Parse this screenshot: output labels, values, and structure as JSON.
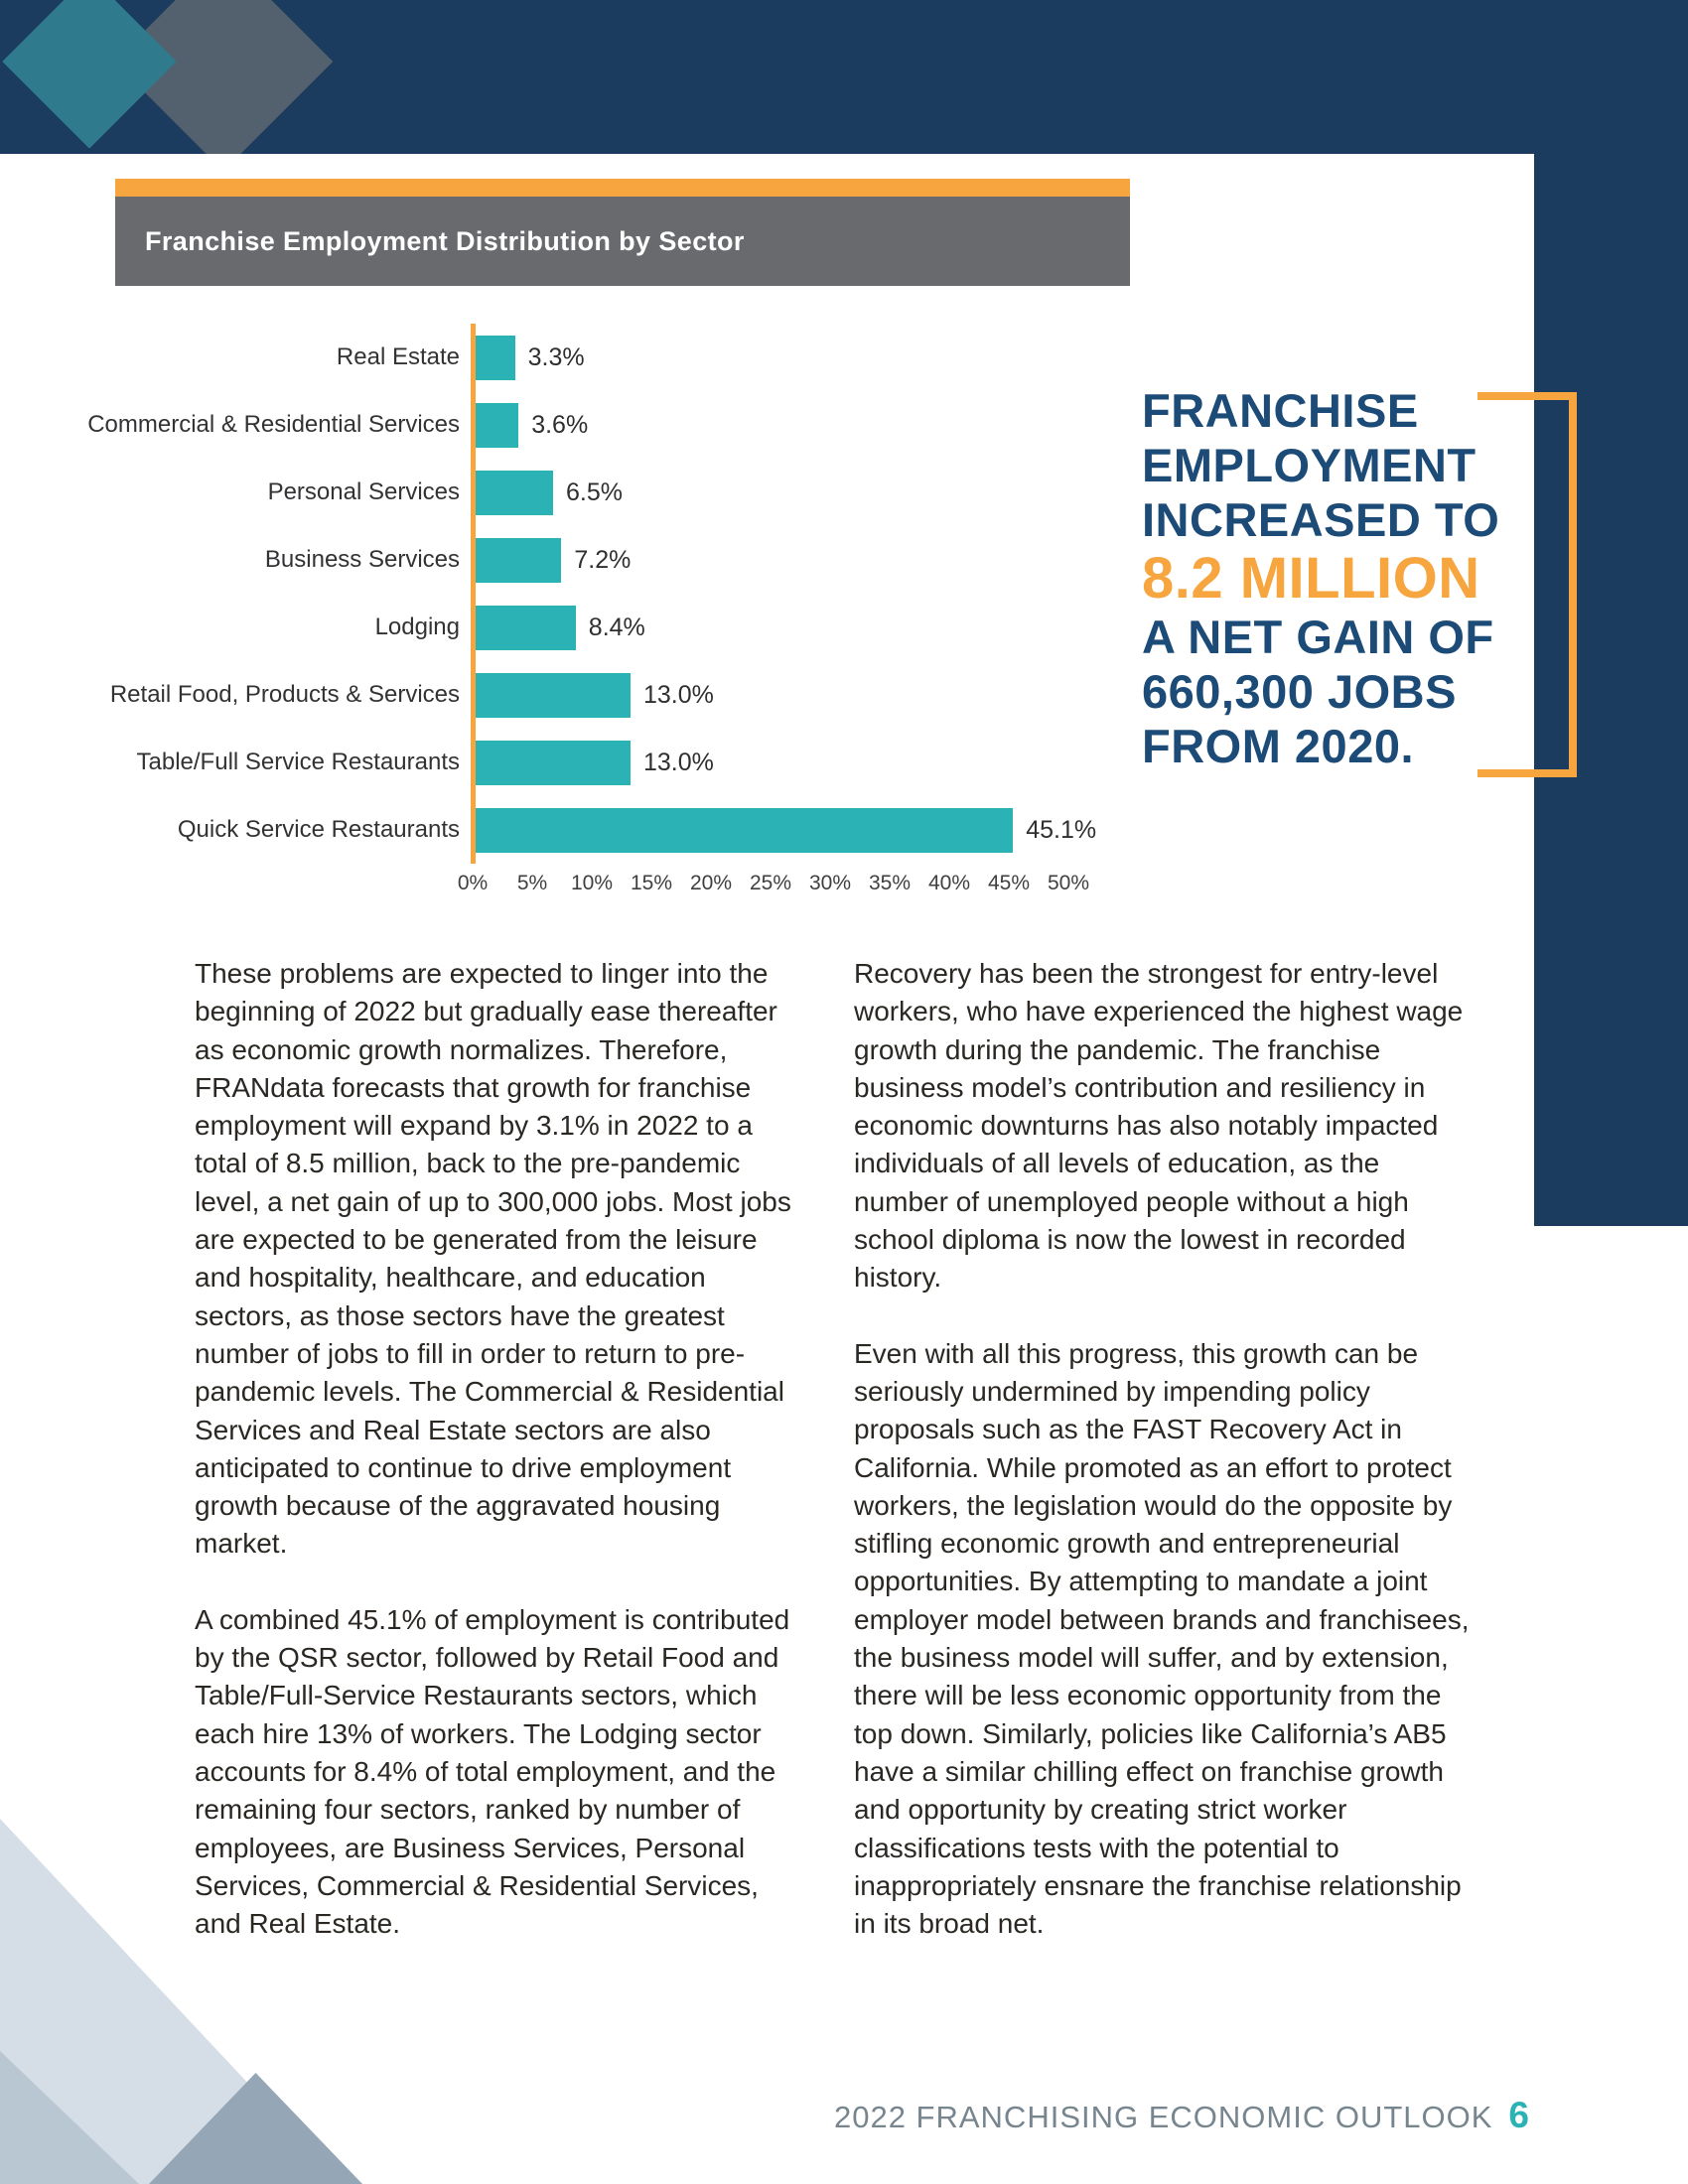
{
  "chart": {
    "header": "Franchise Employment Distribution by Sector",
    "chart_data": {
      "type": "bar",
      "orientation": "horizontal",
      "title": "Franchise Employment Distribution by Sector",
      "categories": [
        "Real Estate",
        "Commercial & Residential Services",
        "Personal Services",
        "Business Services",
        "Lodging",
        "Retail Food, Products & Services",
        "Table/Full Service Restaurants",
        "Quick Service Restaurants"
      ],
      "values": [
        3.3,
        3.6,
        6.5,
        7.2,
        8.4,
        13.0,
        13.0,
        45.1
      ],
      "value_labels": [
        "3.3%",
        "3.6%",
        "6.5%",
        "7.2%",
        "8.4%",
        "13.0%",
        "13.0%",
        "45.1%"
      ],
      "x_ticks": [
        "0%",
        "5%",
        "10%",
        "15%",
        "20%",
        "25%",
        "30%",
        "35%",
        "40%",
        "45%",
        "50%"
      ],
      "xlim": [
        0,
        50
      ],
      "grid": false,
      "legend": false,
      "bar_color": "#2bb2b4",
      "axis_color": "#f6a53f"
    }
  },
  "callout": {
    "lines_top": [
      "FRANCHISE",
      "EMPLOYMENT",
      "INCREASED TO"
    ],
    "highlight": "8.2 MILLION",
    "lines_bottom": [
      "A NET GAIN OF",
      "660,300 JOBS",
      "FROM 2020."
    ]
  },
  "body": {
    "left_column": [
      "These problems are expected to linger into the beginning of 2022 but gradually ease thereafter as economic growth normalizes. Therefore, FRANdata forecasts that growth for franchise employment will expand by 3.1% in 2022 to a total of 8.5 million, back to the pre-pandemic level, a net gain of up to 300,000 jobs. Most jobs are expected to be generated from the leisure and hospitality, healthcare, and education sectors, as those sectors have the greatest number of jobs to fill in order to return to pre-pandemic levels. The Commercial & Residential Services and Real Estate sectors are also anticipated to continue to drive employment growth because of the aggravated housing market.",
      "A combined 45.1% of employment is contributed by the QSR sector, followed by Retail Food and Table/Full-Service Restaurants sectors, which each hire 13% of workers. The Lodging sector accounts for 8.4% of total employment, and the remaining four sectors, ranked by number of employees, are Business Services, Personal Services, Commercial & Residential Services, and Real Estate."
    ],
    "right_column": [
      "Recovery has been the strongest for entry-level workers, who have experienced the highest wage growth during the pandemic. The franchise business model’s contribution and resiliency in economic downturns has also notably impacted individuals of all levels of education, as the number of unemployed people without a high school diploma is now the lowest in recorded history.",
      "Even with all this progress, this growth can be seriously undermined by impending policy proposals such as the FAST Recovery Act in California. While promoted as an effort to protect workers, the legislation would do the opposite by stifling economic growth and entrepreneurial opportunities. By attempting to mandate a joint employer model between brands and franchisees, the business model will suffer, and by extension, there will be less economic opportunity from the top down. Similarly, policies like California’s AB5 have a similar chilling effect on franchise growth and opportunity by creating strict worker classifications tests with the potential to inappropriately ensnare the franchise relationship in its broad net."
    ]
  },
  "footer": {
    "text": "2022 FRANCHISING ECONOMIC OUTLOOK",
    "page_number": "6"
  },
  "colors": {
    "navy": "#1c3c5f",
    "callout_navy": "#1d4b77",
    "orange": "#f6a53f",
    "teal": "#2bb2b4",
    "header_gray": "#696a6d",
    "body_text": "#2b2824",
    "footer_text": "#76858e",
    "tri_light": "#d5dee6",
    "tri_mid": "#b9c7d3",
    "tri_dark": "#95a7b6",
    "diamond_teal": "#2f7a8d",
    "diamond_gray": "#53616e"
  }
}
